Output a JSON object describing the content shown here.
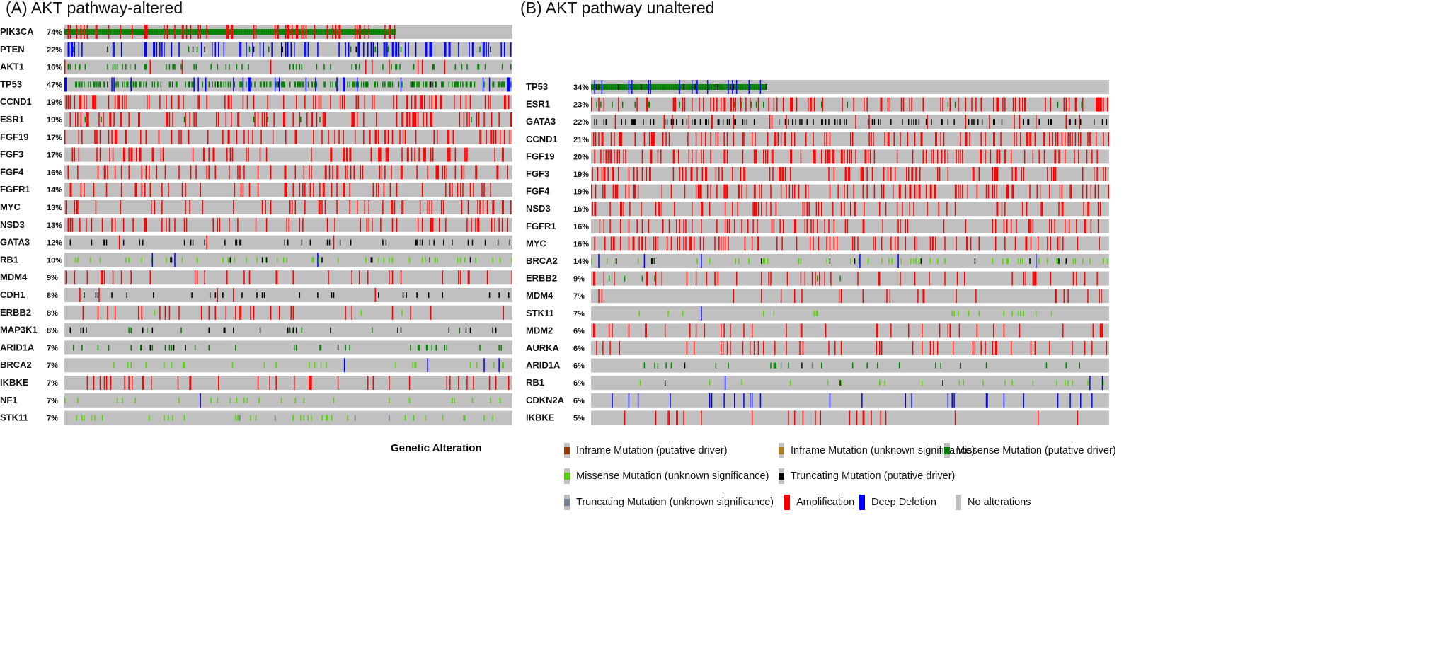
{
  "chart_data": [
    {
      "type": "heatmap",
      "title": "(A) AKT pathway-altered",
      "genes": [
        {
          "gene": "PIK3CA",
          "pct": "74%",
          "alterations": [
            "missense_driver",
            "amplification"
          ]
        },
        {
          "gene": "PTEN",
          "pct": "22%",
          "alterations": [
            "deep_deletion",
            "truncating_driver",
            "missense_driver"
          ]
        },
        {
          "gene": "AKT1",
          "pct": "16%",
          "alterations": [
            "missense_driver",
            "amplification"
          ]
        },
        {
          "gene": "TP53",
          "pct": "47%",
          "alterations": [
            "missense_driver",
            "truncating_driver",
            "deep_deletion"
          ]
        },
        {
          "gene": "CCND1",
          "pct": "19%",
          "alterations": [
            "amplification"
          ]
        },
        {
          "gene": "ESR1",
          "pct": "19%",
          "alterations": [
            "amplification",
            "missense_driver"
          ]
        },
        {
          "gene": "FGF19",
          "pct": "17%",
          "alterations": [
            "amplification"
          ]
        },
        {
          "gene": "FGF3",
          "pct": "17%",
          "alterations": [
            "amplification"
          ]
        },
        {
          "gene": "FGF4",
          "pct": "16%",
          "alterations": [
            "amplification"
          ]
        },
        {
          "gene": "FGFR1",
          "pct": "14%",
          "alterations": [
            "amplification"
          ]
        },
        {
          "gene": "MYC",
          "pct": "13%",
          "alterations": [
            "amplification"
          ]
        },
        {
          "gene": "NSD3",
          "pct": "13%",
          "alterations": [
            "amplification"
          ]
        },
        {
          "gene": "GATA3",
          "pct": "12%",
          "alterations": [
            "truncating_driver",
            "amplification",
            "missense_unknown"
          ]
        },
        {
          "gene": "RB1",
          "pct": "10%",
          "alterations": [
            "missense_unknown",
            "truncating_driver",
            "deep_deletion"
          ]
        },
        {
          "gene": "MDM4",
          "pct": "9%",
          "alterations": [
            "amplification"
          ]
        },
        {
          "gene": "CDH1",
          "pct": "8%",
          "alterations": [
            "truncating_driver",
            "missense_unknown",
            "amplification"
          ]
        },
        {
          "gene": "ERBB2",
          "pct": "8%",
          "alterations": [
            "amplification",
            "missense_unknown"
          ]
        },
        {
          "gene": "MAP3K1",
          "pct": "8%",
          "alterations": [
            "truncating_driver",
            "missense_driver"
          ]
        },
        {
          "gene": "ARID1A",
          "pct": "7%",
          "alterations": [
            "missense_driver",
            "truncating_driver"
          ]
        },
        {
          "gene": "BRCA2",
          "pct": "7%",
          "alterations": [
            "missense_unknown",
            "truncating_driver",
            "deep_deletion"
          ]
        },
        {
          "gene": "IKBKE",
          "pct": "7%",
          "alterations": [
            "amplification"
          ]
        },
        {
          "gene": "NF1",
          "pct": "7%",
          "alterations": [
            "missense_unknown",
            "deep_deletion",
            "truncating_driver"
          ]
        },
        {
          "gene": "STK11",
          "pct": "7%",
          "alterations": [
            "missense_unknown",
            "truncating_unknown"
          ]
        }
      ]
    },
    {
      "type": "heatmap",
      "title": "(B) AKT pathway unaltered",
      "genes": [
        {
          "gene": "TP53",
          "pct": "34%",
          "alterations": [
            "missense_driver",
            "truncating_driver",
            "deep_deletion"
          ]
        },
        {
          "gene": "ESR1",
          "pct": "23%",
          "alterations": [
            "amplification",
            "missense_driver"
          ]
        },
        {
          "gene": "GATA3",
          "pct": "22%",
          "alterations": [
            "truncating_driver",
            "amplification"
          ]
        },
        {
          "gene": "CCND1",
          "pct": "21%",
          "alterations": [
            "amplification"
          ]
        },
        {
          "gene": "FGF19",
          "pct": "20%",
          "alterations": [
            "amplification"
          ]
        },
        {
          "gene": "FGF3",
          "pct": "19%",
          "alterations": [
            "amplification"
          ]
        },
        {
          "gene": "FGF4",
          "pct": "19%",
          "alterations": [
            "amplification"
          ]
        },
        {
          "gene": "NSD3",
          "pct": "16%",
          "alterations": [
            "amplification"
          ]
        },
        {
          "gene": "FGFR1",
          "pct": "16%",
          "alterations": [
            "amplification"
          ]
        },
        {
          "gene": "MYC",
          "pct": "16%",
          "alterations": [
            "amplification"
          ]
        },
        {
          "gene": "BRCA2",
          "pct": "14%",
          "alterations": [
            "missense_unknown",
            "truncating_driver",
            "deep_deletion"
          ]
        },
        {
          "gene": "ERBB2",
          "pct": "9%",
          "alterations": [
            "amplification",
            "missense_driver"
          ]
        },
        {
          "gene": "MDM4",
          "pct": "7%",
          "alterations": [
            "amplification"
          ]
        },
        {
          "gene": "STK11",
          "pct": "7%",
          "alterations": [
            "missense_unknown",
            "deep_deletion"
          ]
        },
        {
          "gene": "MDM2",
          "pct": "6%",
          "alterations": [
            "amplification"
          ]
        },
        {
          "gene": "AURKA",
          "pct": "6%",
          "alterations": [
            "amplification"
          ]
        },
        {
          "gene": "ARID1A",
          "pct": "6%",
          "alterations": [
            "missense_driver",
            "truncating_driver",
            "truncating_unknown"
          ]
        },
        {
          "gene": "RB1",
          "pct": "6%",
          "alterations": [
            "missense_unknown",
            "deep_deletion",
            "truncating_driver"
          ]
        },
        {
          "gene": "CDKN2A",
          "pct": "6%",
          "alterations": [
            "deep_deletion"
          ]
        },
        {
          "gene": "IKBKE",
          "pct": "5%",
          "alterations": [
            "amplification"
          ]
        }
      ]
    }
  ],
  "legend": {
    "title": "Genetic Alteration",
    "items": [
      {
        "key": "inframe_driver",
        "label": "Inframe Mutation (putative driver)",
        "color": "#993404"
      },
      {
        "key": "inframe_unknown",
        "label": "Inframe Mutation (unknown significance)",
        "color": "#a68028"
      },
      {
        "key": "missense_driver",
        "label": "Missense Mutation (putative driver)",
        "color": "#008000"
      },
      {
        "key": "missense_unknown",
        "label": "Missense Mutation (unknown significance)",
        "color": "#53d400"
      },
      {
        "key": "truncating_driver",
        "label": "Truncating Mutation (putative driver)",
        "color": "#000000"
      },
      {
        "key": "truncating_unknown",
        "label": "Truncating Mutation (unknown significance)",
        "color": "#708090"
      },
      {
        "key": "amplification",
        "label": "Amplification",
        "color": "#ff0000"
      },
      {
        "key": "deep_deletion",
        "label": "Deep Deletion",
        "color": "#0000ff"
      },
      {
        "key": "none",
        "label": "No alterations",
        "color": "#c0c0c0"
      }
    ]
  }
}
